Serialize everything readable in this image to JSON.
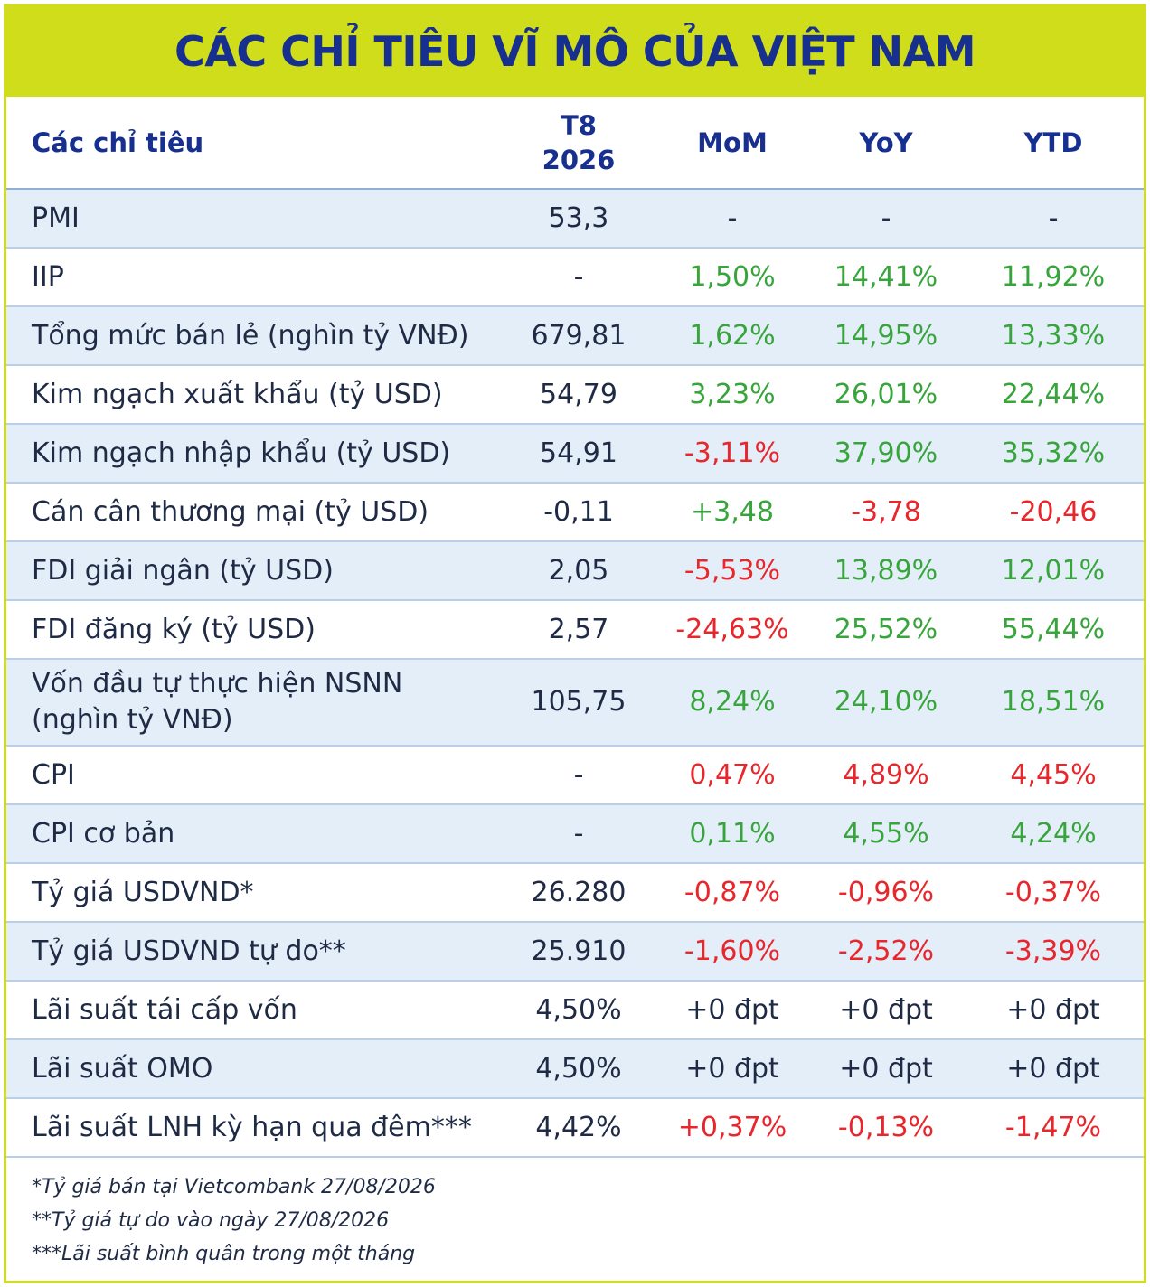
{
  "title": "CÁC CHỈ TIÊU VĨ MÔ CỦA VIỆT NAM",
  "colors": {
    "accent": "#cfdd1b",
    "title": "#17308f",
    "positive": "#38a43c",
    "negative": "#e8262b",
    "stripe": "#e4eef9"
  },
  "table": {
    "headers": [
      "Các chỉ tiêu",
      "T8 2026",
      "MoM",
      "YoY",
      "YTD"
    ],
    "rows": [
      {
        "label": "PMI",
        "value": "53,3",
        "mom": "-",
        "yoy": "-",
        "ytd": "-"
      },
      {
        "label": "IIP",
        "value": "-",
        "mom": "1,50%",
        "yoy": "14,41%",
        "ytd": "11,92%"
      },
      {
        "label": "Tổng mức bán lẻ (nghìn tỷ VNĐ)",
        "value": "679,81",
        "mom": "1,62%",
        "yoy": "14,95%",
        "ytd": "13,33%"
      },
      {
        "label": "Kim ngạch xuất khẩu (tỷ USD)",
        "value": "54,79",
        "mom": "3,23%",
        "yoy": "26,01%",
        "ytd": "22,44%"
      },
      {
        "label": "Kim ngạch nhập khẩu (tỷ USD)",
        "value": "54,91",
        "mom": "-3,11%",
        "yoy": "37,90%",
        "ytd": "35,32%"
      },
      {
        "label": "Cán cân thương mại (tỷ USD)",
        "value": "-0,11",
        "mom": "+3,48",
        "yoy": "-3,78",
        "ytd": "-20,46"
      },
      {
        "label": "FDI giải ngân (tỷ USD)",
        "value": "2,05",
        "mom": "-5,53%",
        "yoy": "13,89%",
        "ytd": "12,01%"
      },
      {
        "label": "FDI đăng ký (tỷ USD)",
        "value": "2,57",
        "mom": "-24,63%",
        "yoy": "25,52%",
        "ytd": "55,44%"
      },
      {
        "label": "Vốn đầu tự thực hiện NSNN (nghìn tỷ VNĐ)",
        "value": "105,75",
        "mom": "8,24%",
        "yoy": "24,10%",
        "ytd": "18,51%"
      },
      {
        "label": "CPI",
        "value": "-",
        "mom": "0,47%",
        "yoy": "4,89%",
        "ytd": "4,45%"
      },
      {
        "label": "CPI cơ bản",
        "value": "-",
        "mom": "0,11%",
        "yoy": "4,55%",
        "ytd": "4,24%"
      },
      {
        "label": "Tỷ giá USDVND*",
        "value": "26.280",
        "mom": "-0,87%",
        "yoy": "-0,96%",
        "ytd": "-0,37%"
      },
      {
        "label": "Tỷ giá USDVND tự do**",
        "value": "25.910",
        "mom": "-1,60%",
        "yoy": "-2,52%",
        "ytd": "-3,39%"
      },
      {
        "label": "Lãi suất tái cấp vốn",
        "value": "4,50%",
        "mom": "+0 đpt",
        "yoy": "+0 đpt",
        "ytd": "+0 đpt"
      },
      {
        "label": "Lãi suất OMO",
        "value": "4,50%",
        "mom": "+0 đpt",
        "yoy": "+0 đpt",
        "ytd": "+0 đpt"
      },
      {
        "label": "Lãi suất LNH kỳ hạn qua đêm***",
        "value": "4,42%",
        "mom": "+0,37%",
        "yoy": "-0,13%",
        "ytd": "-1,47%"
      }
    ],
    "tones": [
      [
        "neu",
        "neu",
        "neu"
      ],
      [
        "pos",
        "pos",
        "pos"
      ],
      [
        "pos",
        "pos",
        "pos"
      ],
      [
        "pos",
        "pos",
        "pos"
      ],
      [
        "neg",
        "pos",
        "pos"
      ],
      [
        "pos",
        "neg",
        "neg"
      ],
      [
        "neg",
        "pos",
        "pos"
      ],
      [
        "neg",
        "pos",
        "pos"
      ],
      [
        "pos",
        "pos",
        "pos"
      ],
      [
        "neg",
        "neg",
        "neg"
      ],
      [
        "pos",
        "pos",
        "pos"
      ],
      [
        "neg",
        "neg",
        "neg"
      ],
      [
        "neg",
        "neg",
        "neg"
      ],
      [
        "neu",
        "neu",
        "neu"
      ],
      [
        "neu",
        "neu",
        "neu"
      ],
      [
        "neg",
        "neg",
        "neg"
      ]
    ]
  },
  "notes": [
    "*Tỷ giá bán tại Vietcombank 27/08/2026",
    "**Tỷ giá tự do vào ngày 27/08/2026",
    "***Lãi suất bình quân trong một tháng"
  ]
}
